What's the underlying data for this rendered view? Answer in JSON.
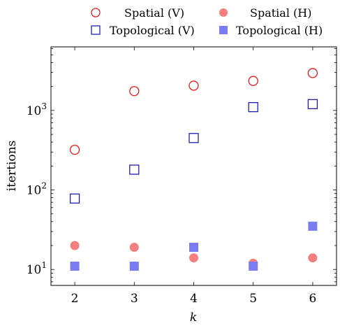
{
  "chart_data": {
    "type": "scatter",
    "title": "",
    "xlabel": "k",
    "ylabel": "itertions",
    "yscale": "log",
    "x": [
      2,
      3,
      4,
      5,
      6
    ],
    "xlim": [
      1.6,
      6.4
    ],
    "ylim": [
      6.3,
      6300
    ],
    "x_ticks": [
      "2",
      "3",
      "4",
      "5",
      "6"
    ],
    "y_ticks": [
      {
        "base": "10",
        "exp": "1",
        "value": 10
      },
      {
        "base": "10",
        "exp": "2",
        "value": 100
      },
      {
        "base": "10",
        "exp": "3",
        "value": 1000
      }
    ],
    "grid": false,
    "legend_position": "top, above plot",
    "series": [
      {
        "name": "Spatial (V)",
        "marker": "circle-open",
        "color": "#e41a1c",
        "values": [
          320,
          1750,
          2050,
          2350,
          2950
        ]
      },
      {
        "name": "Spatial (H)",
        "marker": "circle-filled",
        "color": "#f47f7f",
        "values": [
          20,
          19,
          14,
          12,
          14
        ]
      },
      {
        "name": "Topological (V)",
        "marker": "square-open",
        "color": "#1f1fb4",
        "values": [
          78,
          180,
          450,
          1100,
          1200
        ]
      },
      {
        "name": "Topological (H)",
        "marker": "square-filled",
        "color": "#7c7cf2",
        "values": [
          11,
          11,
          19,
          11,
          35
        ]
      }
    ]
  }
}
